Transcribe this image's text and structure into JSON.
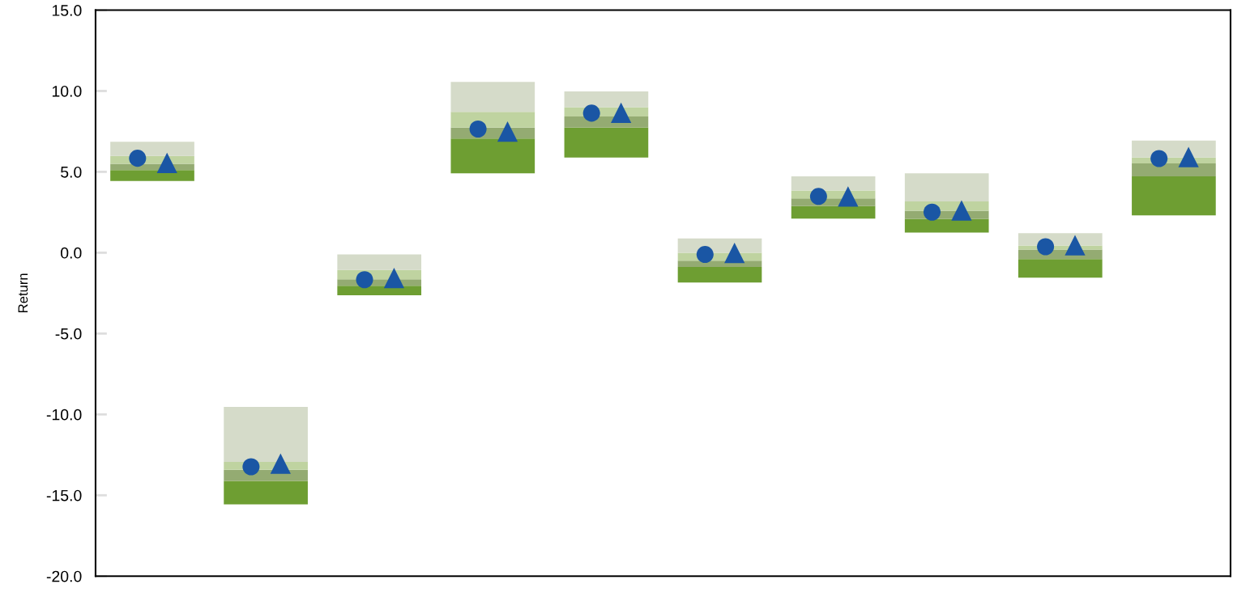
{
  "chart_data": {
    "type": "bar",
    "ylabel": "Return",
    "categories": [
      null,
      null,
      null,
      null,
      null,
      null,
      null,
      null,
      null,
      null
    ],
    "series": [
      {
        "color": "#6e9e32",
        "base": [
          4.43,
          -15.57,
          -2.63,
          4.91,
          5.89,
          -1.85,
          2.11,
          1.25,
          -1.54,
          2.31
        ],
        "values": [
          0.68,
          1.46,
          0.59,
          2.15,
          1.85,
          0.97,
          0.77,
          0.85,
          1.15,
          2.41
        ]
      },
      {
        "color": "#94ab72",
        "base": [
          5.11,
          -14.11,
          -2.04,
          7.06,
          7.74,
          -0.88,
          2.88,
          2.1,
          -0.39,
          4.72
        ],
        "values": [
          0.39,
          0.68,
          0.39,
          0.68,
          0.68,
          0.39,
          0.48,
          0.5,
          0.59,
          0.8
        ]
      },
      {
        "color": "#bfd3a0",
        "base": [
          5.5,
          -13.43,
          -1.65,
          7.74,
          8.42,
          -0.49,
          3.36,
          2.6,
          0.2,
          5.52
        ],
        "values": [
          0.49,
          0.49,
          0.58,
          0.97,
          0.58,
          0.49,
          0.49,
          0.57,
          0.24,
          0.36
        ]
      },
      {
        "color": "#d5dbc9",
        "base": [
          5.99,
          -12.94,
          -1.07,
          8.71,
          9.0,
          0.0,
          3.85,
          3.17,
          0.44,
          5.88
        ],
        "values": [
          0.87,
          3.4,
          0.97,
          1.85,
          0.98,
          0.88,
          0.87,
          1.74,
          0.77,
          1.06
        ]
      },
      {
        "type": "scatter",
        "marker": "circle",
        "color": "#1a56a4",
        "values": [
          5.84,
          -13.24,
          -1.67,
          7.65,
          8.63,
          -0.11,
          3.48,
          2.51,
          0.37,
          5.82
        ]
      },
      {
        "type": "scatter",
        "marker": "triangle",
        "color": "#1a56a4",
        "values": [
          5.55,
          -13.04,
          -1.56,
          7.49,
          8.65,
          -0.01,
          3.48,
          2.62,
          0.46,
          5.92
        ]
      }
    ],
    "ylim": [
      -20,
      15
    ],
    "yticks": [
      {
        "value": -20,
        "label": "-20.0"
      },
      {
        "value": -15,
        "label": "-15.0"
      },
      {
        "value": -10,
        "label": "-10.0"
      },
      {
        "value": -5,
        "label": "-5.0"
      },
      {
        "value": 0,
        "label": "0.0"
      },
      {
        "value": 5,
        "label": "5.0"
      },
      {
        "value": 10,
        "label": "10.0"
      },
      {
        "value": 15,
        "label": "15.0"
      }
    ],
    "tick_labels": "y",
    "grid": false,
    "legend": false
  }
}
